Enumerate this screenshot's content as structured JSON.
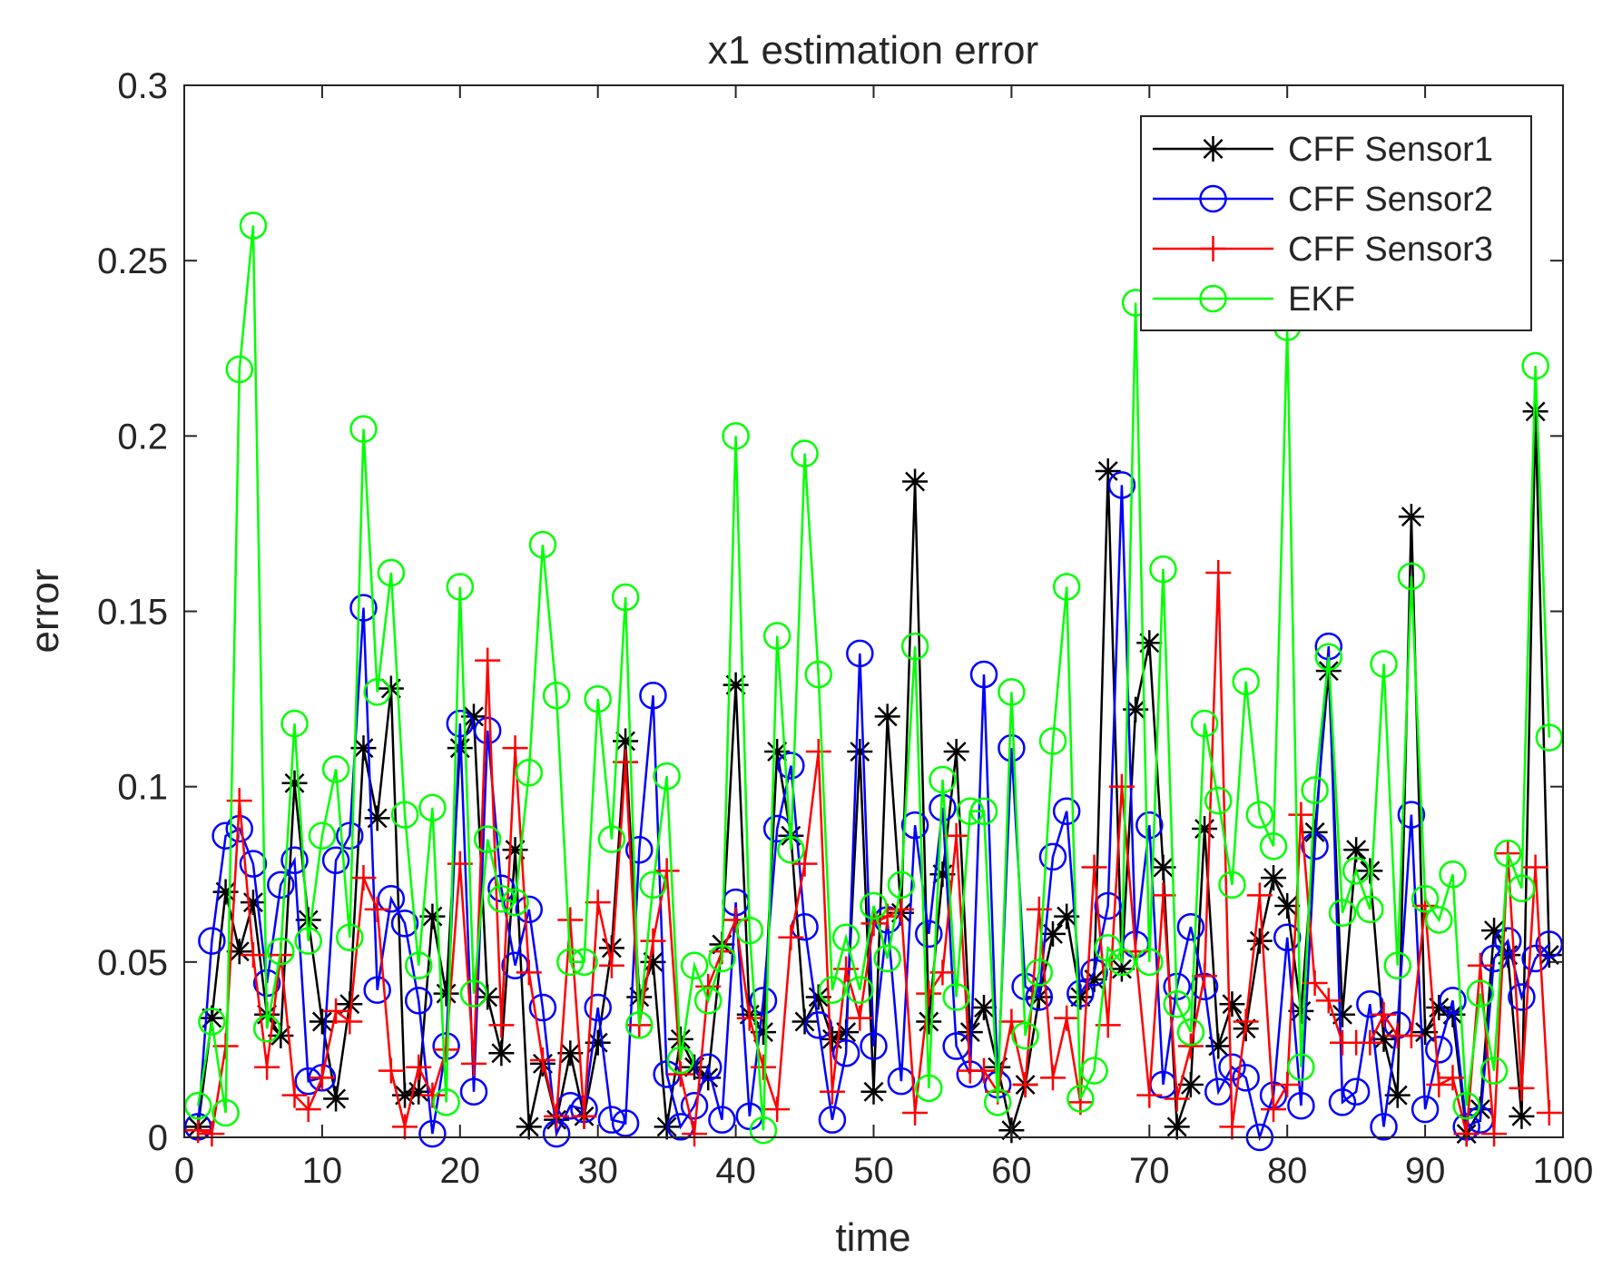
{
  "chart_data": {
    "type": "line",
    "title": "x1 estimation error",
    "xlabel": "time",
    "ylabel": "error",
    "xlim": [
      0,
      100
    ],
    "ylim": [
      0,
      0.3
    ],
    "xticks": [
      0,
      10,
      20,
      30,
      40,
      50,
      60,
      70,
      80,
      90,
      100
    ],
    "xtick_labels": [
      "0",
      "10",
      "20",
      "30",
      "40",
      "50",
      "60",
      "70",
      "80",
      "90",
      "100"
    ],
    "yticks": [
      0,
      0.05,
      0.1,
      0.15,
      0.2,
      0.25,
      0.3
    ],
    "ytick_labels": [
      "0",
      "0.05",
      "0.1",
      "0.15",
      "0.2",
      "0.25",
      "0.3"
    ],
    "grid": false,
    "legend_position": "top-right",
    "x": [
      1,
      2,
      3,
      4,
      5,
      6,
      7,
      8,
      9,
      10,
      11,
      12,
      13,
      14,
      15,
      16,
      17,
      18,
      19,
      20,
      21,
      22,
      23,
      24,
      25,
      26,
      27,
      28,
      29,
      30,
      31,
      32,
      33,
      34,
      35,
      36,
      37,
      38,
      39,
      40,
      41,
      42,
      43,
      44,
      45,
      46,
      47,
      48,
      49,
      50,
      51,
      52,
      53,
      54,
      55,
      56,
      57,
      58,
      59,
      60,
      61,
      62,
      63,
      64,
      65,
      66,
      67,
      68,
      69,
      70,
      71,
      72,
      73,
      74,
      75,
      76,
      77,
      78,
      79,
      80,
      81,
      82,
      83,
      84,
      85,
      86,
      87,
      88,
      89,
      90,
      91,
      92,
      93,
      94,
      95,
      96,
      97,
      98,
      99
    ],
    "series": [
      {
        "name": "CFF Sensor1",
        "color": "#000000",
        "marker": "asterisk",
        "values": [
          0.003,
          0.034,
          0.07,
          0.053,
          0.067,
          0.035,
          0.029,
          0.101,
          0.062,
          0.033,
          0.011,
          0.038,
          0.111,
          0.091,
          0.128,
          0.012,
          0.013,
          0.063,
          0.041,
          0.111,
          0.12,
          0.04,
          0.024,
          0.082,
          0.003,
          0.021,
          0.005,
          0.024,
          0.006,
          0.027,
          0.054,
          0.113,
          0.04,
          0.05,
          0.003,
          0.028,
          0.02,
          0.017,
          0.055,
          0.129,
          0.035,
          0.03,
          0.11,
          0.086,
          0.033,
          0.04,
          0.028,
          0.03,
          0.11,
          0.013,
          0.12,
          0.064,
          0.187,
          0.033,
          0.075,
          0.11,
          0.03,
          0.037,
          0.02,
          0.002,
          0.015,
          0.04,
          0.058,
          0.063,
          0.04,
          0.045,
          0.19,
          0.048,
          0.122,
          0.141,
          0.077,
          0.003,
          0.015,
          0.088,
          0.026,
          0.038,
          0.031,
          0.056,
          0.074,
          0.066,
          0.036,
          0.087,
          0.133,
          0.035,
          0.082,
          0.076,
          0.028,
          0.012,
          0.177,
          0.03,
          0.037,
          0.035,
          0.001,
          0.008,
          0.059,
          0.052,
          0.006,
          0.207,
          0.052
        ]
      },
      {
        "name": "CFF Sensor2",
        "color": "#0000ff",
        "marker": "circle",
        "values": [
          0.003,
          0.056,
          0.086,
          0.088,
          0.078,
          0.044,
          0.072,
          0.079,
          0.016,
          0.017,
          0.079,
          0.086,
          0.151,
          0.042,
          0.068,
          0.061,
          0.039,
          0.001,
          0.026,
          0.118,
          0.013,
          0.116,
          0.071,
          0.049,
          0.065,
          0.037,
          0.001,
          0.009,
          0.008,
          0.037,
          0.005,
          0.004,
          0.082,
          0.126,
          0.018,
          0.003,
          0.009,
          0.02,
          0.005,
          0.067,
          0.006,
          0.039,
          0.088,
          0.106,
          0.06,
          0.032,
          0.005,
          0.024,
          0.138,
          0.026,
          0.062,
          0.016,
          0.089,
          0.058,
          0.094,
          0.026,
          0.018,
          0.132,
          0.015,
          0.111,
          0.043,
          0.04,
          0.08,
          0.093,
          0.041,
          0.047,
          0.066,
          0.186,
          0.055,
          0.089,
          0.015,
          0.043,
          0.06,
          0.043,
          0.013,
          0.02,
          0.017,
          0.0,
          0.012,
          0.057,
          0.009,
          0.083,
          0.14,
          0.01,
          0.013,
          0.038,
          0.003,
          0.032,
          0.092,
          0.008,
          0.025,
          0.039,
          0.003,
          0.005,
          0.051,
          0.056,
          0.04,
          0.051,
          0.055
        ]
      },
      {
        "name": "CFF Sensor3",
        "color": "#ff0000",
        "marker": "plus",
        "values": [
          0.002,
          0.001,
          0.026,
          0.096,
          0.052,
          0.02,
          0.052,
          0.012,
          0.008,
          0.017,
          0.036,
          0.033,
          0.074,
          0.065,
          0.019,
          0.003,
          0.02,
          0.012,
          0.025,
          0.078,
          0.021,
          0.136,
          0.032,
          0.111,
          0.047,
          0.022,
          0.006,
          0.062,
          0.006,
          0.067,
          0.049,
          0.107,
          0.032,
          0.056,
          0.076,
          0.018,
          0.001,
          0.043,
          0.053,
          0.062,
          0.034,
          0.02,
          0.008,
          0.057,
          0.078,
          0.11,
          0.013,
          0.048,
          0.034,
          0.061,
          0.063,
          0.065,
          0.007,
          0.041,
          0.047,
          0.086,
          0.019,
          0.019,
          0.013,
          0.033,
          0.015,
          0.065,
          0.017,
          0.034,
          0.01,
          0.077,
          0.032,
          0.1,
          0.053,
          0.012,
          0.069,
          0.011,
          0.026,
          0.046,
          0.161,
          0.003,
          0.033,
          0.069,
          0.008,
          0.015,
          0.092,
          0.044,
          0.039,
          0.027,
          0.027,
          0.027,
          0.035,
          0.029,
          0.029,
          0.066,
          0.015,
          0.017,
          0.001,
          0.049,
          0.001,
          0.081,
          0.014,
          0.077,
          0.007
        ]
      },
      {
        "name": "EKF",
        "color": "#00ff00",
        "marker": "circle",
        "values": [
          0.009,
          0.033,
          0.007,
          0.219,
          0.26,
          0.031,
          0.053,
          0.118,
          0.056,
          0.086,
          0.105,
          0.057,
          0.202,
          0.127,
          0.161,
          0.092,
          0.049,
          0.094,
          0.01,
          0.157,
          0.041,
          0.085,
          0.068,
          0.067,
          0.104,
          0.169,
          0.126,
          0.05,
          0.05,
          0.125,
          0.085,
          0.154,
          0.032,
          0.072,
          0.103,
          0.022,
          0.049,
          0.039,
          0.051,
          0.2,
          0.059,
          0.002,
          0.143,
          0.082,
          0.195,
          0.132,
          0.042,
          0.057,
          0.042,
          0.066,
          0.051,
          0.072,
          0.14,
          0.014,
          0.102,
          0.04,
          0.093,
          0.093,
          0.01,
          0.127,
          0.029,
          0.047,
          0.113,
          0.157,
          0.011,
          0.019,
          0.054,
          0.05,
          0.238,
          0.05,
          0.162,
          0.038,
          0.03,
          0.118,
          0.096,
          0.072,
          0.13,
          0.092,
          0.083,
          0.231,
          0.02,
          0.099,
          0.137,
          0.064,
          0.076,
          0.065,
          0.135,
          0.049,
          0.16,
          0.068,
          0.062,
          0.075,
          0.009,
          0.041,
          0.019,
          0.081,
          0.071,
          0.22,
          0.114
        ]
      }
    ]
  }
}
